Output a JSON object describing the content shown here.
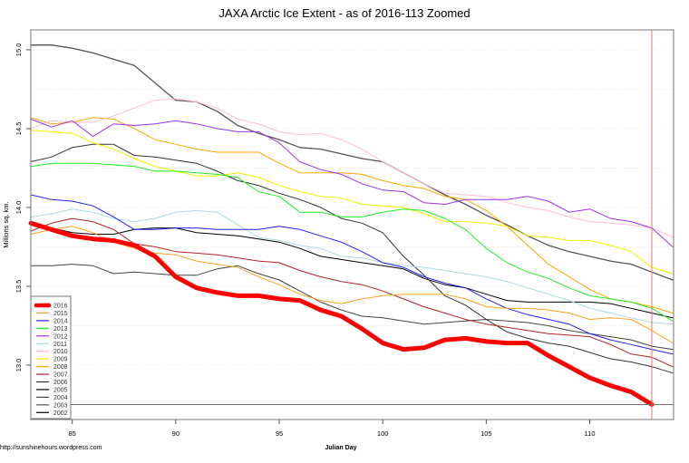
{
  "chart_data": {
    "type": "line",
    "title": "JAXA Arctic Ice Extent - as of 2016-113 Zoomed",
    "xlabel": "Julian Day",
    "ylabel": "Millions sq. km.",
    "xlim": [
      83,
      114.05
    ],
    "ylim": [
      12.655,
      15.126
    ],
    "xticks": [
      85,
      90,
      95,
      100,
      105,
      110
    ],
    "yticks": [
      13.0,
      13.5,
      14.0,
      14.5,
      15.0
    ],
    "ytick_labels": [
      "13.0",
      "13.5",
      "14.0",
      "14.5",
      "15.0"
    ],
    "grid": "horizontal dotted every 0.25",
    "legend_position": "bottom-left",
    "current_day_marker": {
      "day": 113,
      "value": 12.75,
      "vline_color": "#ff7070",
      "hline_color": "#777777"
    },
    "x_start": 83,
    "series": [
      {
        "name": "2016",
        "color": "#ff0000",
        "width": 5,
        "values": [
          13.9,
          13.86,
          13.82,
          13.8,
          13.79,
          13.76,
          13.69,
          13.56,
          13.49,
          13.46,
          13.44,
          13.44,
          13.42,
          13.41,
          13.35,
          13.31,
          13.23,
          13.14,
          13.1,
          13.11,
          13.16,
          13.17,
          13.15,
          13.14,
          13.14,
          13.06,
          12.99,
          12.92,
          12.87,
          12.83,
          12.75
        ]
      },
      {
        "name": "2015",
        "color": "#ffa020",
        "width": 1,
        "values": [
          13.83,
          13.86,
          13.88,
          13.84,
          13.78,
          13.74,
          13.71,
          13.7,
          13.66,
          13.64,
          13.62,
          13.56,
          13.51,
          13.45,
          13.41,
          13.39,
          13.42,
          13.44,
          13.45,
          13.45,
          13.45,
          13.42,
          13.37,
          13.36,
          13.36,
          13.35,
          13.33,
          13.29,
          13.3,
          13.29,
          13.22,
          13.14
        ]
      },
      {
        "name": "2014",
        "color": "#2020ff",
        "width": 1,
        "values": [
          14.08,
          14.05,
          14.04,
          14.01,
          13.94,
          13.86,
          13.86,
          13.87,
          13.87,
          13.86,
          13.86,
          13.86,
          13.88,
          13.86,
          13.82,
          13.78,
          13.72,
          13.65,
          13.62,
          13.56,
          13.52,
          13.49,
          13.42,
          13.36,
          13.32,
          13.29,
          13.26,
          13.2,
          13.16,
          13.13,
          13.1,
          13.07
        ]
      },
      {
        "name": "2013",
        "color": "#22ee22",
        "width": 1,
        "values": [
          14.26,
          14.28,
          14.28,
          14.28,
          14.27,
          14.26,
          14.23,
          14.23,
          14.22,
          14.21,
          14.19,
          14.1,
          14.07,
          13.97,
          13.97,
          13.94,
          13.94,
          13.97,
          13.99,
          13.98,
          13.93,
          13.86,
          13.74,
          13.65,
          13.59,
          13.55,
          13.49,
          13.44,
          13.42,
          13.4,
          13.36,
          13.28
        ]
      },
      {
        "name": "2012",
        "color": "#a030f0",
        "width": 1,
        "values": [
          14.56,
          14.51,
          14.55,
          14.45,
          14.53,
          14.52,
          14.53,
          14.55,
          14.53,
          14.5,
          14.48,
          14.48,
          14.41,
          14.29,
          14.24,
          14.21,
          14.15,
          14.11,
          14.1,
          14.03,
          14.02,
          14.05,
          14.05,
          14.05,
          14.07,
          14.04,
          13.97,
          13.99,
          13.93,
          13.91,
          13.87,
          13.75
        ]
      },
      {
        "name": "2011",
        "color": "#add8e6",
        "width": 1,
        "values": [
          13.94,
          13.96,
          13.99,
          13.97,
          13.93,
          13.91,
          13.93,
          13.97,
          13.98,
          13.97,
          13.89,
          13.81,
          13.79,
          13.76,
          13.74,
          13.69,
          13.68,
          13.65,
          13.63,
          13.62,
          13.6,
          13.58,
          13.56,
          13.53,
          13.49,
          13.45,
          13.41,
          13.36,
          13.33,
          13.3,
          13.27,
          13.26
        ]
      },
      {
        "name": "2010",
        "color": "#ffc0cb",
        "width": 1,
        "values": [
          14.5,
          14.55,
          14.54,
          14.54,
          14.58,
          14.63,
          14.68,
          14.69,
          14.67,
          14.63,
          14.56,
          14.53,
          14.48,
          14.46,
          14.47,
          14.43,
          14.37,
          14.29,
          14.22,
          14.15,
          14.09,
          14.08,
          14.07,
          14.03,
          14.0,
          13.98,
          13.94,
          13.91,
          13.9,
          13.89,
          13.87,
          13.81
        ]
      },
      {
        "name": "2009",
        "color": "#f0f000",
        "width": 1,
        "values": [
          14.49,
          14.48,
          14.47,
          14.41,
          14.37,
          14.31,
          14.26,
          14.23,
          14.2,
          14.2,
          14.22,
          14.19,
          14.14,
          14.1,
          14.07,
          14.06,
          14.02,
          14.01,
          14.0,
          13.96,
          13.91,
          13.91,
          13.9,
          13.88,
          13.82,
          13.81,
          13.79,
          13.79,
          13.76,
          13.72,
          13.62,
          13.58
        ]
      },
      {
        "name": "2008",
        "color": "#ffa500",
        "width": 1,
        "values": [
          14.57,
          14.53,
          14.54,
          14.57,
          14.56,
          14.5,
          14.43,
          14.4,
          14.37,
          14.35,
          14.35,
          14.35,
          14.28,
          14.22,
          14.22,
          14.22,
          14.21,
          14.17,
          14.14,
          14.12,
          14.07,
          14.05,
          13.98,
          13.88,
          13.76,
          13.64,
          13.56,
          13.48,
          13.42,
          13.4,
          13.37,
          13.33
        ]
      },
      {
        "name": "2007",
        "color": "#b22222",
        "width": 1,
        "values": [
          13.85,
          13.9,
          13.93,
          13.91,
          13.86,
          13.77,
          13.75,
          13.72,
          13.71,
          13.7,
          13.68,
          13.66,
          13.65,
          13.6,
          13.56,
          13.53,
          13.51,
          13.47,
          13.42,
          13.37,
          13.33,
          13.29,
          13.26,
          13.24,
          13.22,
          13.2,
          13.19,
          13.18,
          13.13,
          13.07,
          13.05,
          12.99
        ]
      },
      {
        "name": "2006",
        "color": "#333333",
        "width": 1,
        "values": [
          14.29,
          14.32,
          14.38,
          14.4,
          14.4,
          14.33,
          14.32,
          14.3,
          14.28,
          14.23,
          14.17,
          14.14,
          14.09,
          14.05,
          14.0,
          13.93,
          13.9,
          13.84,
          13.69,
          13.57,
          13.44,
          13.38,
          13.29,
          13.21,
          13.17,
          13.14,
          13.12,
          13.08,
          13.04,
          13.02,
          12.99,
          12.95
        ]
      },
      {
        "name": "2005",
        "color": "#000000",
        "width": 1,
        "values": [
          13.89,
          13.87,
          13.84,
          13.83,
          13.83,
          13.86,
          13.87,
          13.87,
          13.84,
          13.83,
          13.82,
          13.8,
          13.78,
          13.74,
          13.69,
          13.67,
          13.65,
          13.63,
          13.61,
          13.55,
          13.51,
          13.49,
          13.45,
          13.41,
          13.4,
          13.4,
          13.4,
          13.4,
          13.39,
          13.36,
          13.33,
          13.3
        ]
      },
      {
        "name": "2004",
        "color": "#444444",
        "width": 1,
        "values": [
          13.63,
          13.63,
          13.64,
          13.63,
          13.58,
          13.59,
          13.58,
          13.57,
          13.57,
          13.61,
          13.63,
          13.58,
          13.54,
          13.47,
          13.4,
          13.35,
          13.31,
          13.3,
          13.28,
          13.26,
          13.27,
          13.28,
          13.29,
          13.28,
          13.27,
          13.25,
          13.22,
          13.2,
          13.18,
          13.16,
          13.12,
          13.1
        ]
      },
      {
        "name": "2003",
        "color": "#555555",
        "width": 1.3,
        "values": [
          15.03,
          15.03,
          15.01,
          14.98,
          14.94,
          14.9,
          14.79,
          14.68,
          14.67,
          14.61,
          14.52,
          14.47,
          14.43,
          14.38,
          14.37,
          14.34,
          14.31,
          14.29,
          14.22,
          14.15,
          14.08,
          14.02,
          13.95,
          13.89,
          13.82,
          13.76,
          13.72,
          13.69,
          13.66,
          13.64,
          13.59,
          13.54
        ]
      },
      {
        "name": "2002",
        "color": "#000000",
        "width": 1,
        "values": []
      }
    ]
  },
  "footer": {
    "source": "http://sunshinehours.wordpress.com"
  }
}
